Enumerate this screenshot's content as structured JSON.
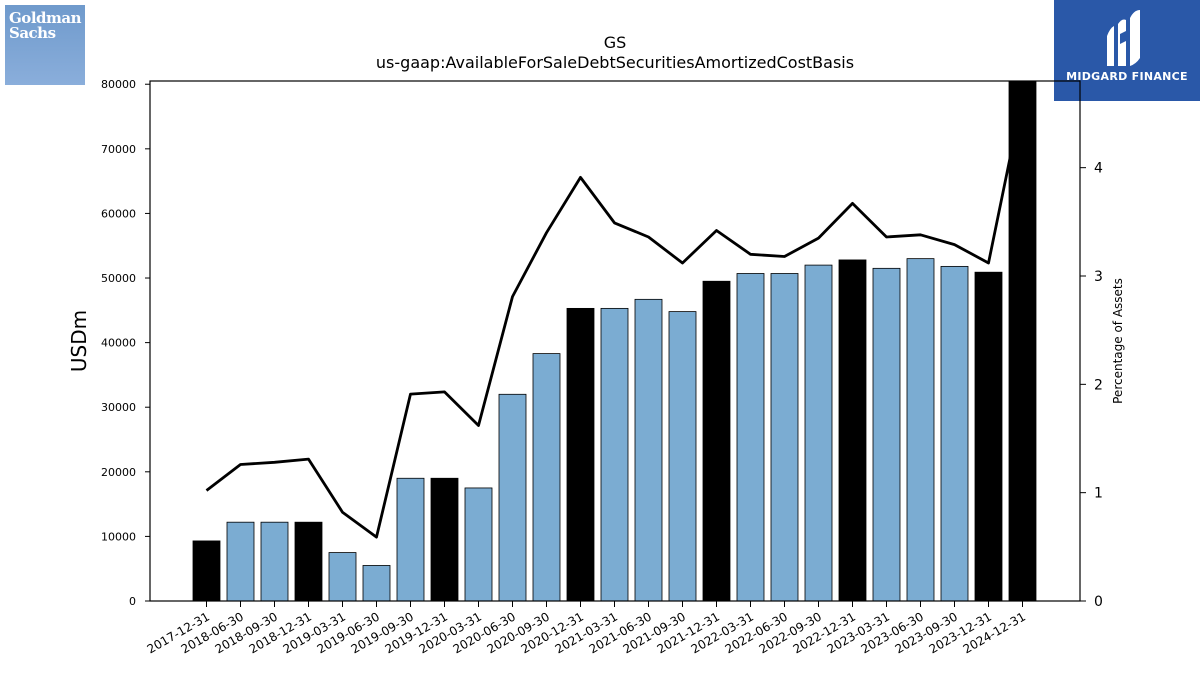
{
  "logos": {
    "left": {
      "line1": "Goldman",
      "line2": "Sachs"
    },
    "right": {
      "text": "MIDGARD FINANCE",
      "icon": "mf-monogram-icon"
    }
  },
  "colors": {
    "bar_default": "#7bacd2",
    "bar_year_end": "#000000",
    "line": "#000000",
    "left_logo": "#7ba3d4",
    "right_logo": "#2a58a8"
  },
  "chart_data": {
    "type": "bar",
    "title": "GS",
    "subtitle": "us-gaap:AvailableForSaleDebtSecuritiesAmortizedCostBasis",
    "ylabel": "USDm",
    "y2label": "Percentage of Assets",
    "ylim": [
      0,
      80500
    ],
    "y2lim": [
      0,
      4.8
    ],
    "yticks": [
      0,
      10000,
      20000,
      30000,
      40000,
      50000,
      60000,
      70000,
      80000
    ],
    "y2ticks": [
      0,
      1,
      2,
      3,
      4
    ],
    "grid": false,
    "categories": [
      "2017-12-31",
      "2018-06-30",
      "2018-09-30",
      "2018-12-31",
      "2019-03-31",
      "2019-06-30",
      "2019-09-30",
      "2019-12-31",
      "2020-03-31",
      "2020-06-30",
      "2020-09-30",
      "2020-12-31",
      "2021-03-31",
      "2021-06-30",
      "2021-09-30",
      "2021-12-31",
      "2022-03-31",
      "2022-06-30",
      "2022-09-30",
      "2022-12-31",
      "2023-03-31",
      "2023-06-30",
      "2023-09-30",
      "2023-12-31",
      "2024-12-31"
    ],
    "series": [
      {
        "kind": "bar",
        "axis": "left",
        "values": [
          9300,
          12200,
          12200,
          12200,
          7500,
          5500,
          19000,
          19000,
          17500,
          32000,
          38300,
          45300,
          45300,
          46700,
          44800,
          49500,
          50700,
          50700,
          52000,
          52800,
          51500,
          53000,
          51800,
          50900,
          80700
        ],
        "year_end": [
          true,
          false,
          false,
          true,
          false,
          false,
          false,
          true,
          false,
          false,
          false,
          true,
          false,
          false,
          false,
          true,
          false,
          false,
          false,
          true,
          false,
          false,
          false,
          true,
          true
        ]
      },
      {
        "kind": "line",
        "axis": "right",
        "values": [
          1.02,
          1.26,
          1.28,
          1.31,
          0.82,
          0.59,
          1.91,
          1.93,
          1.62,
          2.81,
          3.4,
          3.91,
          3.49,
          3.36,
          3.12,
          3.42,
          3.2,
          3.18,
          3.35,
          3.67,
          3.36,
          3.38,
          3.29,
          3.12,
          4.65
        ]
      }
    ]
  }
}
